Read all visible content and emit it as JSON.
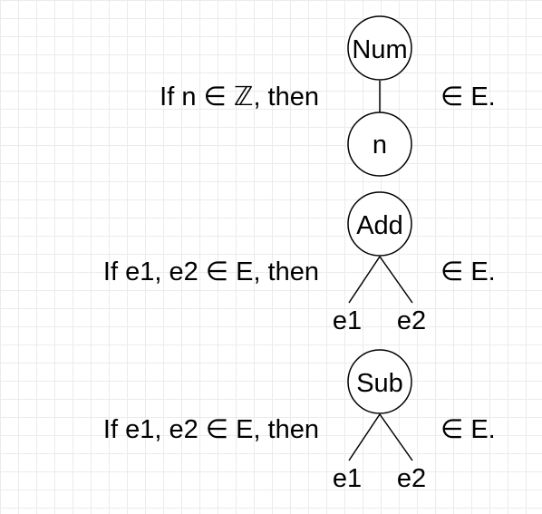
{
  "rules": [
    {
      "premise": "If n ∈ ℤ, then",
      "conclusion": "∈ E.",
      "root": "Num",
      "children": [
        "n"
      ]
    },
    {
      "premise": "If e1, e2 ∈ E, then",
      "conclusion": "∈ E.",
      "root": "Add",
      "children": [
        "e1",
        "e2"
      ]
    },
    {
      "premise": "If e1, e2 ∈ E, then",
      "conclusion": "∈ E.",
      "root": "Sub",
      "children": [
        "e1",
        "e2"
      ]
    }
  ],
  "colors": {
    "background": "#ffffff",
    "grid": "#ebebeb",
    "stroke": "#000000"
  }
}
